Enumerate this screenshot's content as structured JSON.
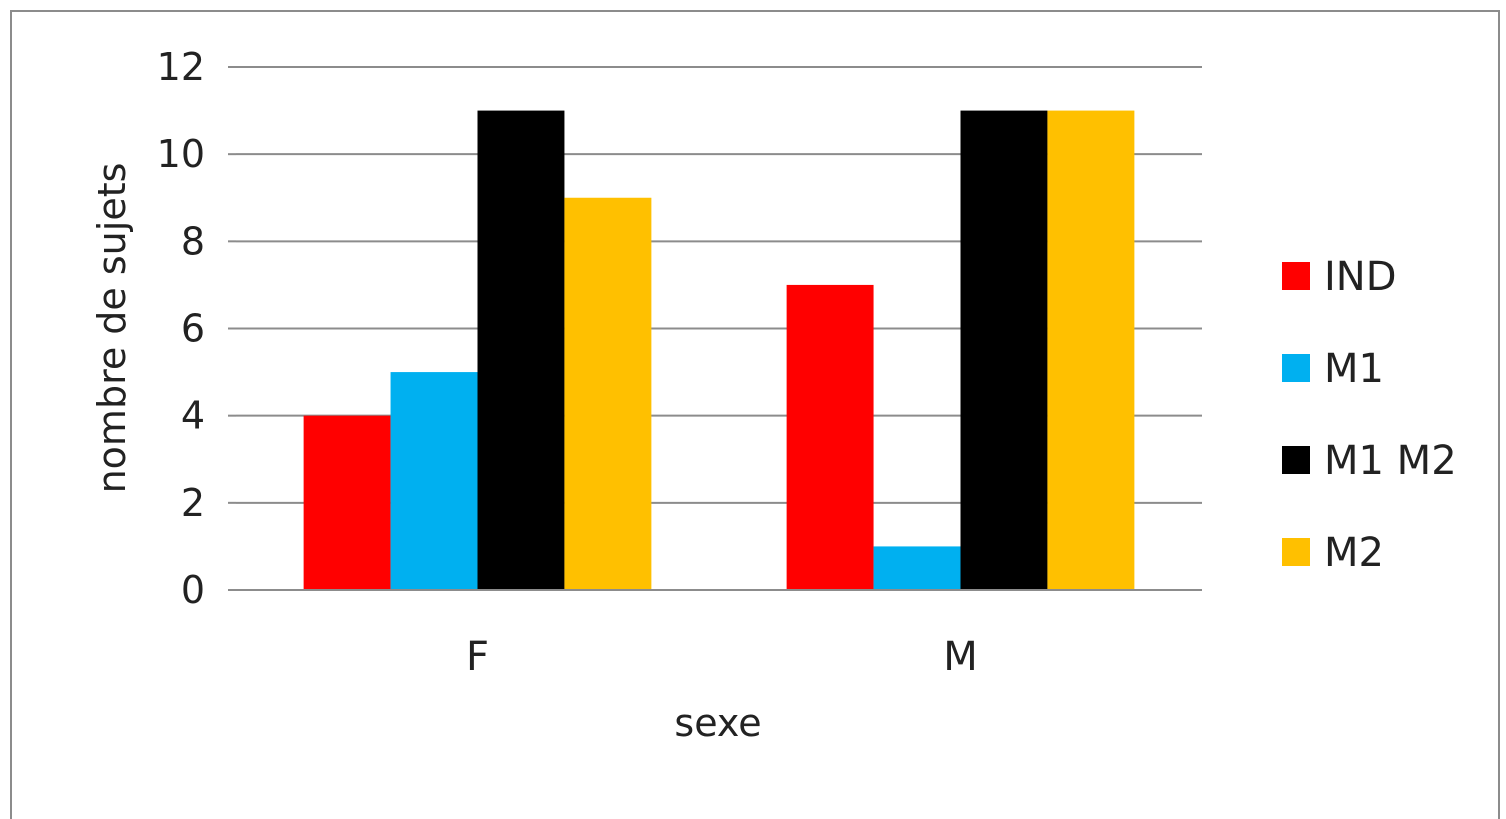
{
  "chart_data": {
    "type": "bar",
    "title": "",
    "xlabel": "sexe",
    "ylabel": "nombre de sujets",
    "categories": [
      "F",
      "M"
    ],
    "ylim": [
      0,
      12
    ],
    "yticks": [
      0,
      2,
      4,
      6,
      8,
      10,
      12
    ],
    "grid": true,
    "legend_position": "right",
    "series": [
      {
        "name": "IND",
        "color": "#ff0000",
        "values": [
          4,
          7
        ]
      },
      {
        "name": "M1",
        "color": "#00b0f0",
        "values": [
          5,
          1
        ]
      },
      {
        "name": "M1 M2",
        "color": "#000000",
        "values": [
          11,
          11
        ]
      },
      {
        "name": "M2",
        "color": "#ffc000",
        "values": [
          9,
          11
        ]
      }
    ]
  }
}
